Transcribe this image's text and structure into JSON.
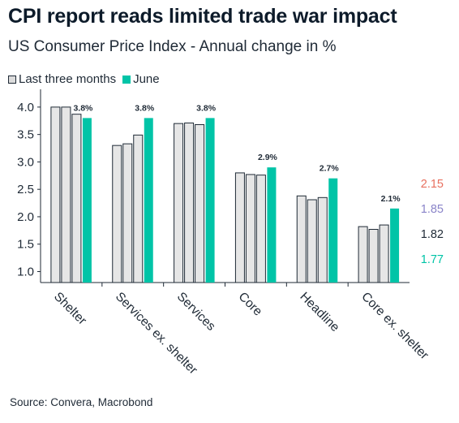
{
  "chart_data": {
    "type": "bar",
    "title": "CPI report reads limited trade war impact",
    "subtitle": "US Consumer Price Index - Annual change in %",
    "categories": [
      "Shelter",
      "Services ex. shelter",
      "Services",
      "Core",
      "Headline",
      "Core ex. shelter"
    ],
    "series": [
      {
        "name": "Last three months",
        "type": "grouped",
        "values": [
          [
            4.0,
            4.0,
            3.87
          ],
          [
            3.3,
            3.33,
            3.49
          ],
          [
            3.7,
            3.71,
            3.68
          ],
          [
            2.8,
            2.77,
            2.76
          ],
          [
            2.38,
            2.31,
            2.35
          ],
          [
            1.82,
            1.77,
            1.85
          ]
        ]
      },
      {
        "name": "June",
        "values": [
          3.8,
          3.8,
          3.8,
          2.9,
          2.7,
          2.15
        ]
      }
    ],
    "data_labels": [
      "3.8%",
      "3.8%",
      "3.8%",
      "2.9%",
      "2.7%",
      "2.1%"
    ],
    "y_ticks": [
      "1.0",
      "1.5",
      "2.0",
      "2.5",
      "3.0",
      "3.5",
      "4.0"
    ],
    "ylim": [
      0.8,
      4.25
    ],
    "side_annotations": [
      {
        "text": "2.15",
        "color": "#e8705f"
      },
      {
        "text": "1.85",
        "color": "#8a84c9"
      },
      {
        "text": "1.82",
        "color": "#1f2a36"
      },
      {
        "text": "1.77",
        "color": "#00c4a7"
      }
    ],
    "colors": {
      "last_three_months_fill": "#e6e6e6",
      "bar_outline": "#1f2a36",
      "june": "#00c4a7",
      "axis": "#1f2a36"
    },
    "legend": {
      "position": "top-left",
      "items": [
        "Last three months",
        "June"
      ]
    },
    "grid": false
  },
  "source": "Source: Convera, Macrobond"
}
